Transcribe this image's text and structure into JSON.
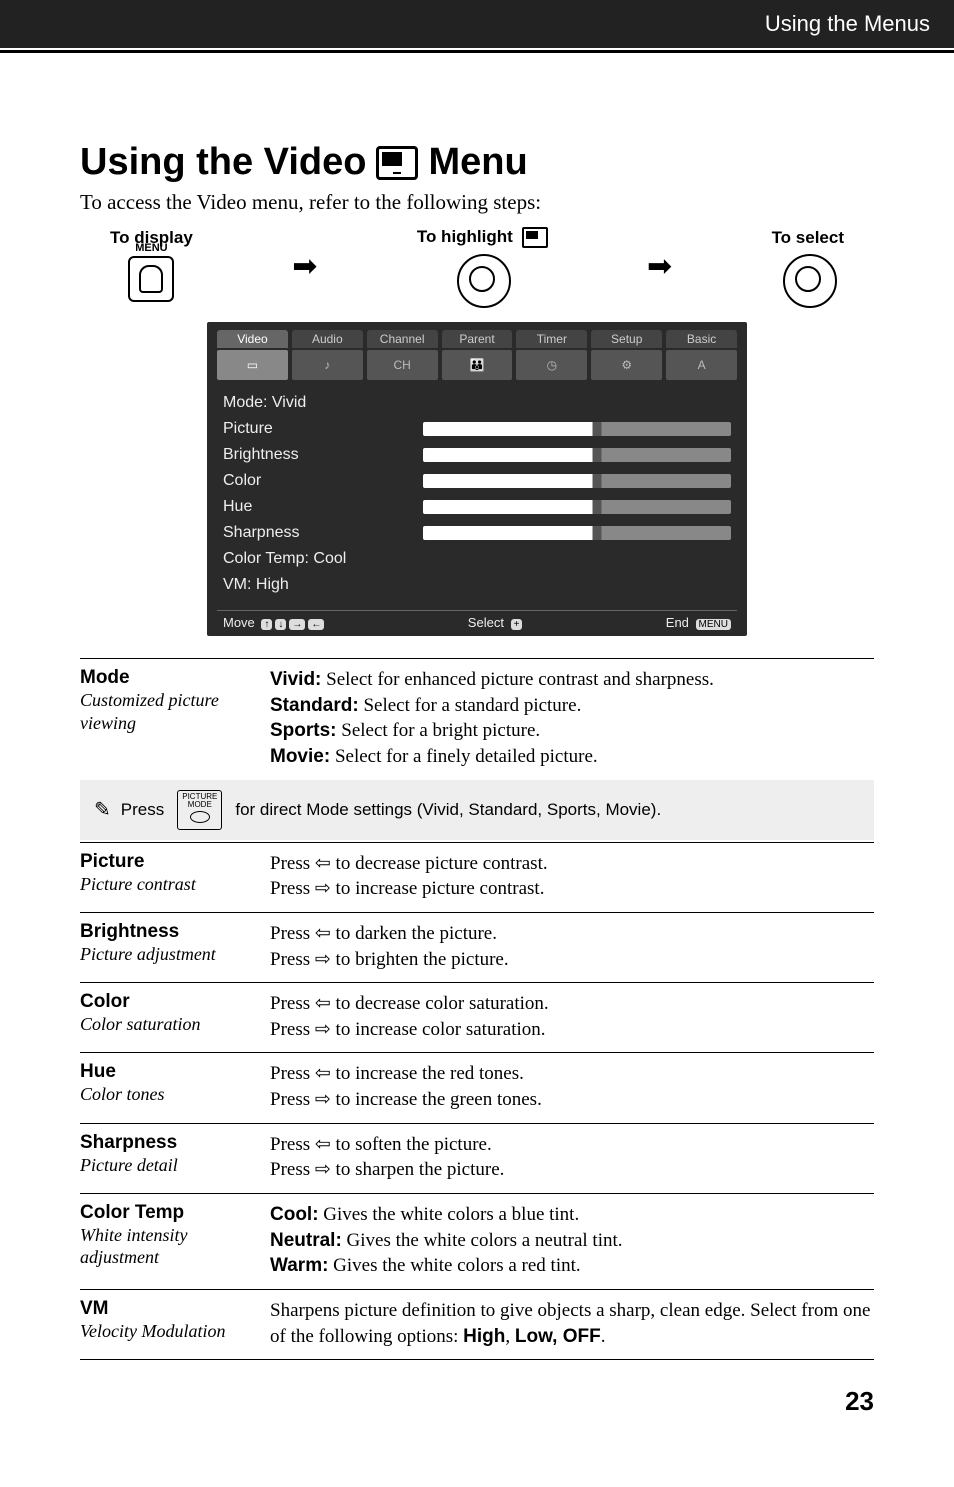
{
  "header": {
    "section_title": "Using the Menus"
  },
  "title_parts": {
    "before": "Using the Video",
    "after": "Menu"
  },
  "subtitle": "To access the Video menu, refer to the following steps:",
  "steps": {
    "display": "To display",
    "highlight": "To highlight",
    "select": "To select",
    "menu_label": "MENU"
  },
  "osd": {
    "tabs": [
      "Video",
      "Audio",
      "Channel",
      "Parent",
      "Timer",
      "Setup",
      "Basic"
    ],
    "active_tab_index": 0,
    "lines": {
      "mode": "Mode:  Vivid",
      "picture": "Picture",
      "brightness": "Brightness",
      "color": "Color",
      "hue": "Hue",
      "sharpness": "Sharpness",
      "colortemp": "Color Temp:  Cool",
      "vm": "VM:  High"
    },
    "foot": {
      "move": "Move",
      "select": "Select",
      "end": "End",
      "end_pill": "MENU"
    }
  },
  "note": {
    "prefix": "Press",
    "key_label": "PICTURE\nMODE",
    "text": "for direct Mode settings (Vivid, Standard, Sports, Movie)."
  },
  "entries": [
    {
      "name": "Mode",
      "ital": "Customized picture viewing",
      "body": "<b>Vivid:</b> Select for enhanced picture contrast and sharpness.<br><b>Standard:</b> Select for a standard picture.<br><b>Sports:</b> Select for a bright picture.<br><b>Movie:</b> Select for a finely detailed picture."
    },
    {
      "name": "Picture",
      "ital": "Picture contrast",
      "body": "Press <span class='arrL'></span> to decrease picture contrast.<br>Press <span class='arrR'></span> to increase picture contrast."
    },
    {
      "name": "Brightness",
      "ital": "Picture adjustment",
      "body": "Press <span class='arrL'></span> to darken the picture.<br>Press <span class='arrR'></span> to brighten the picture."
    },
    {
      "name": "Color",
      "ital": "Color saturation",
      "body": "Press <span class='arrL'></span> to decrease color saturation.<br>Press <span class='arrR'></span> to increase color saturation."
    },
    {
      "name": "Hue",
      "ital": "Color tones",
      "body": "Press <span class='arrL'></span> to increase the red tones.<br>Press <span class='arrR'></span> to increase the green tones."
    },
    {
      "name": "Sharpness",
      "ital": "Picture detail",
      "body": "Press <span class='arrL'></span> to soften the picture.<br>Press <span class='arrR'></span> to sharpen the picture."
    },
    {
      "name": "Color Temp",
      "ital": "White intensity adjustment",
      "body": "<b>Cool:</b> Gives the white colors a blue tint.<br><b>Neutral:</b> Gives the white colors a neutral tint.<br><b>Warm:</b> Gives the white colors a red tint."
    },
    {
      "name": "VM",
      "ital": "Velocity Modulation",
      "body": "Sharpens picture definition to give objects a sharp, clean edge. Select from one of the following options: <b>High</b>, <b>Low, OFF</b>."
    }
  ],
  "page_number": "23",
  "colors": {
    "header_bg": "#222222",
    "osd_bg": "#2a2a2a",
    "note_bg": "#eeeeee"
  }
}
